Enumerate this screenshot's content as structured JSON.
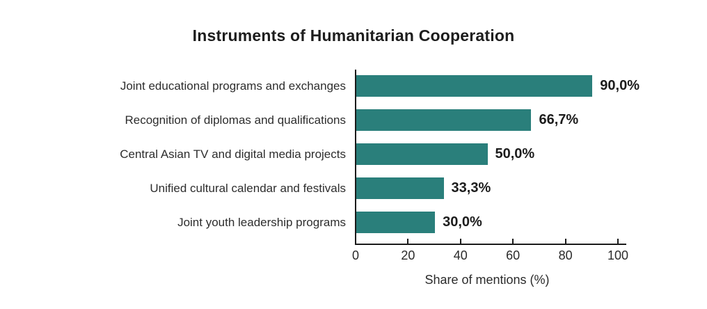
{
  "chart_data": {
    "type": "bar",
    "orientation": "horizontal",
    "title": "Instruments of Humanitarian Cooperation",
    "xlabel": "Share of mentions (%)",
    "ylabel": "",
    "categories": [
      "Joint educational programs and exchanges",
      "Recognition of diplomas and qualifications",
      "Central Asian TV and digital media projects",
      "Unified cultural calendar and festivals",
      "Joint youth leadership programs"
    ],
    "values": [
      90.0,
      66.7,
      50.0,
      33.3,
      30.0
    ],
    "value_labels": [
      "90,0%",
      "66,7%",
      "50,0%",
      "33,3%",
      "30,0%"
    ],
    "xlim": [
      0,
      100
    ],
    "xticks": [
      0,
      20,
      40,
      60,
      80,
      100
    ],
    "bar_color": "#2a7f7b",
    "axis_color": "#1a1a1a",
    "grid": false,
    "legend": null
  }
}
